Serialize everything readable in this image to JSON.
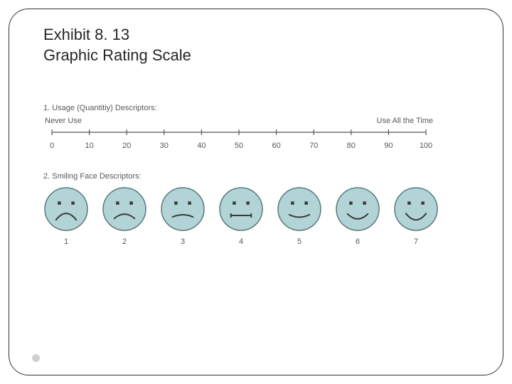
{
  "title": {
    "line1": "Exhibit 8. 13",
    "line2": "Graphic Rating Scale"
  },
  "section1": {
    "heading": "1. Usage (Quantitiy) Descriptors:",
    "left_anchor": "Never Use",
    "right_anchor": "Use All the Time",
    "scale": {
      "type": "numeric-line",
      "min": 0,
      "max": 100,
      "tick_step": 10,
      "tick_labels": [
        "0",
        "10",
        "20",
        "30",
        "40",
        "50",
        "60",
        "70",
        "80",
        "90",
        "100"
      ],
      "line_color": "#585858",
      "tick_length": 8,
      "label_fontsize": 11,
      "label_color": "#585858"
    }
  },
  "section2": {
    "heading": "2. Smiling Face Descriptors:",
    "faces": {
      "type": "face-scale",
      "count": 7,
      "labels": [
        "1",
        "2",
        "3",
        "4",
        "5",
        "6",
        "7"
      ],
      "face_fill": "#b2d4d6",
      "face_stroke": "#5a7a7c",
      "eye_color": "#3a3a3a",
      "mouth_color": "#3a3a3a",
      "face_radius": 30,
      "mouth_curvature": [
        -0.9,
        -0.6,
        -0.3,
        0.0,
        0.35,
        0.7,
        0.9
      ],
      "label_fontsize": 11,
      "label_color": "#585858"
    }
  },
  "colors": {
    "text": "#262626",
    "subtext": "#585858",
    "border": "#333333",
    "bg": "#ffffff"
  }
}
